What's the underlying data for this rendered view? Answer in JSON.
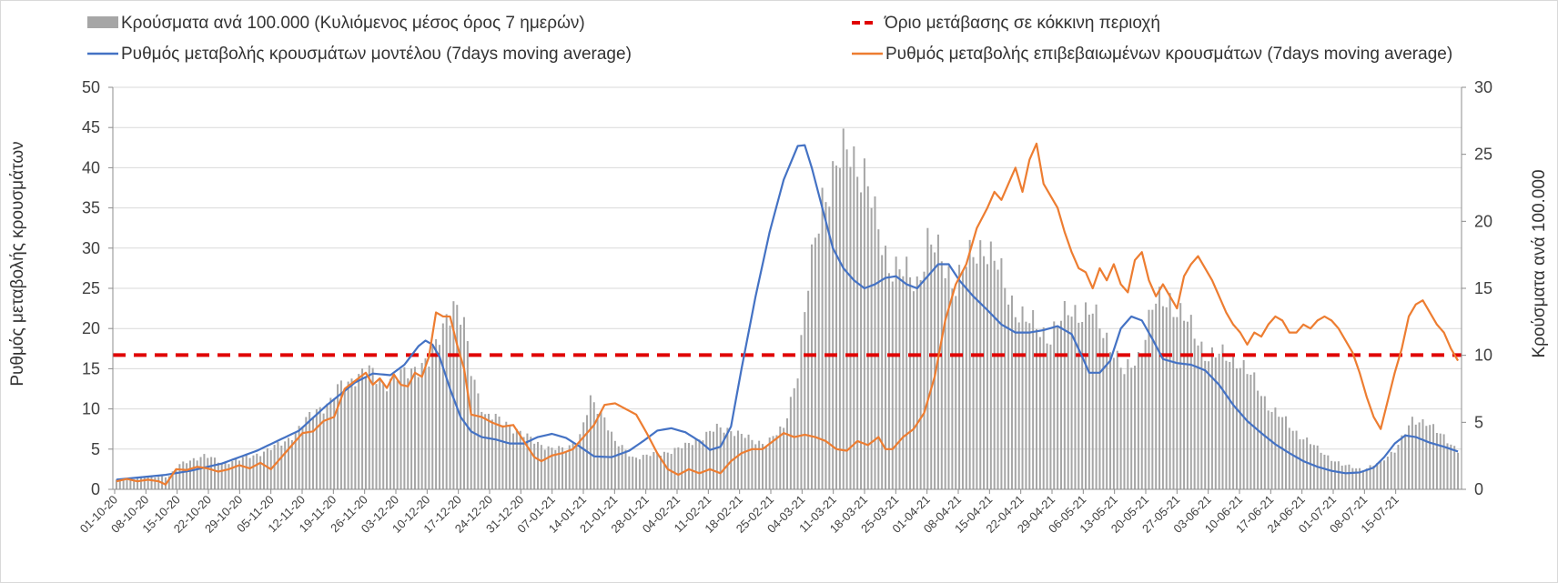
{
  "chart_data": {
    "type": "combo-bar-line",
    "legend": {
      "bars": "Κρούσματα ανά 100.000 (Κυλιόμενος μέσος όρος 7 ημερών)",
      "threshold": "Όριο μετάβασης σε κόκκινη περιοχή",
      "model": "Ρυθμός μεταβολής κρουσμάτων μοντέλου (7days moving average)",
      "confirmed": "Ρυθμός μεταβολής επιβεβαιωμένων κρουσμάτων (7days moving average)"
    },
    "y_left": {
      "label": "Ρυθμός μεταβολής κρουσμάτων",
      "min": 0,
      "max": 50,
      "ticks": [
        0,
        5,
        10,
        15,
        20,
        25,
        30,
        35,
        40,
        45,
        50
      ]
    },
    "y_right": {
      "label": "Κρούσματα ανά 100.000",
      "min": 0,
      "max": 30,
      "ticks": [
        0,
        5,
        10,
        15,
        20,
        25,
        30
      ]
    },
    "grid": true,
    "x_start": "2020-10-01",
    "x_days": 294,
    "x_tick_labels": [
      "01-10-20",
      "08-10-20",
      "15-10-20",
      "22-10-20",
      "29-10-20",
      "05-11-20",
      "12-11-20",
      "19-11-20",
      "26-11-20",
      "03-12-20",
      "10-12-20",
      "17-12-20",
      "24-12-20",
      "31-12-20",
      "07-01-21",
      "14-01-21",
      "21-01-21",
      "28-01-21",
      "04-02-21",
      "11-02-21",
      "18-02-21",
      "25-02-21",
      "04-03-21",
      "11-03-21",
      "18-03-21",
      "25-03-21",
      "01-04-21",
      "08-04-21",
      "15-04-21",
      "22-04-21",
      "29-04-21",
      "06-05-21",
      "13-05-21",
      "20-05-21",
      "27-05-21",
      "03-06-21",
      "10-06-21",
      "17-06-21",
      "24-06-21",
      "01-07-21",
      "08-07-21",
      "15-07-21"
    ],
    "threshold_left_value": 16.7,
    "bars_per_100k_keypoints": [
      [
        0,
        0.7
      ],
      [
        7,
        0.9
      ],
      [
        12,
        1.0
      ],
      [
        14,
        1.8
      ],
      [
        17,
        2.3
      ],
      [
        20,
        2.5
      ],
      [
        24,
        2.0
      ],
      [
        28,
        2.2
      ],
      [
        35,
        3.0
      ],
      [
        38,
        3.6
      ],
      [
        41,
        4.5
      ],
      [
        45,
        6.0
      ],
      [
        48,
        6.5
      ],
      [
        50,
        7.4
      ],
      [
        54,
        8.5
      ],
      [
        57,
        8.7
      ],
      [
        60,
        8.0
      ],
      [
        64,
        8.4
      ],
      [
        67,
        9.2
      ],
      [
        70,
        9.4
      ],
      [
        72,
        10.6
      ],
      [
        74,
        13.2
      ],
      [
        76,
        13.8
      ],
      [
        78,
        12.0
      ],
      [
        80,
        9.0
      ],
      [
        83,
        5.5
      ],
      [
        88,
        5.0
      ],
      [
        92,
        4.0
      ],
      [
        98,
        3.0
      ],
      [
        101,
        3.0
      ],
      [
        104,
        4.0
      ],
      [
        107,
        6.5
      ],
      [
        110,
        5.5
      ],
      [
        112,
        3.5
      ],
      [
        116,
        2.4
      ],
      [
        122,
        2.6
      ],
      [
        128,
        3.2
      ],
      [
        132,
        4.0
      ],
      [
        135,
        4.5
      ],
      [
        138,
        4.5
      ],
      [
        143,
        3.6
      ],
      [
        146,
        3.5
      ],
      [
        150,
        4.5
      ],
      [
        153,
        9.0
      ],
      [
        156,
        15.0
      ],
      [
        159,
        22.0
      ],
      [
        162,
        23.8
      ],
      [
        165,
        25.5
      ],
      [
        168,
        23.5
      ],
      [
        171,
        20.0
      ],
      [
        174,
        17.0
      ],
      [
        177,
        16.0
      ],
      [
        180,
        15.5
      ],
      [
        183,
        18.5
      ],
      [
        186,
        17.0
      ],
      [
        189,
        15.5
      ],
      [
        192,
        17.0
      ],
      [
        195,
        18.5
      ],
      [
        198,
        17.0
      ],
      [
        201,
        14.5
      ],
      [
        205,
        12.5
      ],
      [
        210,
        11.5
      ],
      [
        215,
        13.5
      ],
      [
        220,
        13.0
      ],
      [
        224,
        11.0
      ],
      [
        227,
        8.5
      ],
      [
        230,
        10.0
      ],
      [
        233,
        13.5
      ],
      [
        237,
        14.3
      ],
      [
        241,
        12.3
      ],
      [
        246,
        10.0
      ],
      [
        252,
        9.8
      ],
      [
        256,
        8.0
      ],
      [
        260,
        6.0
      ],
      [
        265,
        4.5
      ],
      [
        270,
        3.0
      ],
      [
        276,
        1.8
      ],
      [
        281,
        1.5
      ],
      [
        285,
        2.0
      ],
      [
        288,
        3.0
      ],
      [
        292,
        5.0
      ],
      [
        295,
        5.2
      ],
      [
        298,
        4.0
      ],
      [
        302,
        3.0
      ]
    ],
    "model_keypoints": [
      [
        0,
        1.2
      ],
      [
        14,
        1.8
      ],
      [
        21,
        2.3
      ],
      [
        30,
        3.2
      ],
      [
        40,
        4.8
      ],
      [
        52,
        7.3
      ],
      [
        60,
        10.5
      ],
      [
        68,
        13.3
      ],
      [
        73,
        14.4
      ],
      [
        78,
        14.2
      ],
      [
        82,
        15.5
      ],
      [
        86,
        17.8
      ],
      [
        88,
        18.5
      ],
      [
        90,
        18.0
      ],
      [
        92,
        16.5
      ],
      [
        95,
        12.5
      ],
      [
        98,
        9.0
      ],
      [
        101,
        7.2
      ],
      [
        104,
        6.5
      ],
      [
        108,
        6.2
      ],
      [
        112,
        5.7
      ],
      [
        116,
        5.7
      ],
      [
        120,
        6.5
      ],
      [
        124,
        6.9
      ],
      [
        128,
        6.4
      ],
      [
        132,
        5.3
      ],
      [
        136,
        4.1
      ],
      [
        141,
        4.0
      ],
      [
        146,
        4.8
      ],
      [
        150,
        6.0
      ],
      [
        154,
        7.3
      ],
      [
        158,
        7.6
      ],
      [
        162,
        7.1
      ],
      [
        166,
        6.0
      ],
      [
        169,
        4.9
      ],
      [
        172,
        5.3
      ],
      [
        175,
        7.8
      ],
      [
        178,
        15.0
      ],
      [
        182,
        24.0
      ],
      [
        186,
        32.0
      ],
      [
        190,
        38.5
      ],
      [
        194,
        42.7
      ],
      [
        196,
        42.8
      ],
      [
        198,
        40.0
      ],
      [
        201,
        35.0
      ],
      [
        204,
        30.0
      ],
      [
        207,
        27.5
      ],
      [
        210,
        26.0
      ],
      [
        213,
        25.0
      ],
      [
        216,
        25.5
      ],
      [
        219,
        26.3
      ],
      [
        222,
        26.5
      ],
      [
        225,
        25.5
      ],
      [
        228,
        25.0
      ],
      [
        231,
        26.5
      ],
      [
        234,
        28.0
      ],
      [
        237,
        28.0
      ],
      [
        240,
        26.0
      ],
      [
        244,
        24.0
      ],
      [
        248,
        22.3
      ],
      [
        252,
        20.5
      ],
      [
        256,
        19.5
      ],
      [
        260,
        19.5
      ],
      [
        264,
        19.8
      ],
      [
        268,
        20.3
      ],
      [
        272,
        19.3
      ],
      [
        275,
        16.5
      ],
      [
        277,
        14.5
      ],
      [
        280,
        14.5
      ],
      [
        283,
        16.0
      ],
      [
        286,
        20.0
      ],
      [
        289,
        21.5
      ],
      [
        292,
        21.0
      ],
      [
        295,
        18.7
      ],
      [
        298,
        16.2
      ],
      [
        302,
        15.7
      ],
      [
        306,
        15.5
      ],
      [
        310,
        14.8
      ],
      [
        314,
        13.0
      ],
      [
        318,
        10.5
      ],
      [
        322,
        8.5
      ],
      [
        326,
        7.0
      ],
      [
        330,
        5.6
      ],
      [
        334,
        4.5
      ],
      [
        338,
        3.5
      ],
      [
        342,
        2.8
      ],
      [
        346,
        2.3
      ],
      [
        350,
        2.0
      ],
      [
        354,
        2.1
      ],
      [
        358,
        2.7
      ],
      [
        361,
        4.0
      ],
      [
        364,
        5.7
      ],
      [
        367,
        6.7
      ],
      [
        370,
        6.5
      ],
      [
        374,
        5.8
      ],
      [
        378,
        5.3
      ],
      [
        382,
        4.7
      ]
    ],
    "confirmed_keypoints": [
      [
        0,
        1.0
      ],
      [
        3,
        1.3
      ],
      [
        6,
        1.0
      ],
      [
        9,
        1.2
      ],
      [
        12,
        1.0
      ],
      [
        14,
        0.6
      ],
      [
        17,
        2.5
      ],
      [
        20,
        2.4
      ],
      [
        23,
        2.8
      ],
      [
        26,
        2.6
      ],
      [
        29,
        2.2
      ],
      [
        32,
        2.5
      ],
      [
        35,
        3.0
      ],
      [
        38,
        2.6
      ],
      [
        41,
        3.3
      ],
      [
        44,
        2.5
      ],
      [
        47,
        4.0
      ],
      [
        50,
        5.5
      ],
      [
        53,
        7.0
      ],
      [
        56,
        7.2
      ],
      [
        59,
        8.5
      ],
      [
        62,
        9.0
      ],
      [
        65,
        12.5
      ],
      [
        68,
        13.5
      ],
      [
        71,
        14.5
      ],
      [
        73,
        13.0
      ],
      [
        75,
        13.8
      ],
      [
        77,
        12.6
      ],
      [
        79,
        14.3
      ],
      [
        81,
        13.0
      ],
      [
        83,
        12.8
      ],
      [
        85,
        14.5
      ],
      [
        87,
        14.0
      ],
      [
        89,
        16.5
      ],
      [
        91,
        22.0
      ],
      [
        93,
        21.5
      ],
      [
        95,
        21.5
      ],
      [
        97,
        18.0
      ],
      [
        99,
        15.0
      ],
      [
        101,
        9.3
      ],
      [
        104,
        9.0
      ],
      [
        107,
        8.3
      ],
      [
        110,
        7.8
      ],
      [
        113,
        8.0
      ],
      [
        116,
        6.0
      ],
      [
        119,
        4.0
      ],
      [
        121,
        3.5
      ],
      [
        124,
        4.2
      ],
      [
        127,
        4.5
      ],
      [
        130,
        5.0
      ],
      [
        133,
        6.5
      ],
      [
        136,
        8.0
      ],
      [
        139,
        10.5
      ],
      [
        142,
        10.7
      ],
      [
        145,
        10.0
      ],
      [
        148,
        9.3
      ],
      [
        151,
        7.0
      ],
      [
        154,
        4.5
      ],
      [
        157,
        2.5
      ],
      [
        160,
        1.8
      ],
      [
        163,
        2.5
      ],
      [
        166,
        2.0
      ],
      [
        169,
        2.5
      ],
      [
        172,
        2.0
      ],
      [
        175,
        3.5
      ],
      [
        178,
        4.5
      ],
      [
        181,
        5.0
      ],
      [
        184,
        5.0
      ],
      [
        187,
        6.0
      ],
      [
        190,
        7.0
      ],
      [
        193,
        6.5
      ],
      [
        196,
        6.8
      ],
      [
        199,
        6.5
      ],
      [
        202,
        6.0
      ],
      [
        205,
        5.0
      ],
      [
        208,
        4.8
      ],
      [
        211,
        6.0
      ],
      [
        214,
        5.5
      ],
      [
        217,
        6.5
      ],
      [
        219,
        5.0
      ],
      [
        221,
        5.0
      ],
      [
        224,
        6.5
      ],
      [
        227,
        7.5
      ],
      [
        230,
        9.5
      ],
      [
        233,
        14.0
      ],
      [
        236,
        21.0
      ],
      [
        239,
        25.5
      ],
      [
        242,
        28.0
      ],
      [
        245,
        32.5
      ],
      [
        248,
        35.0
      ],
      [
        250,
        37.0
      ],
      [
        252,
        36.0
      ],
      [
        254,
        38.0
      ],
      [
        256,
        40.0
      ],
      [
        258,
        37.0
      ],
      [
        260,
        41.0
      ],
      [
        262,
        43.0
      ],
      [
        264,
        38.0
      ],
      [
        266,
        36.5
      ],
      [
        268,
        35.0
      ],
      [
        270,
        32.0
      ],
      [
        272,
        29.5
      ],
      [
        274,
        27.5
      ],
      [
        276,
        27.0
      ],
      [
        278,
        25.0
      ],
      [
        280,
        27.5
      ],
      [
        282,
        26.0
      ],
      [
        284,
        28.0
      ],
      [
        286,
        25.5
      ],
      [
        288,
        24.5
      ],
      [
        290,
        28.5
      ],
      [
        292,
        29.5
      ],
      [
        294,
        26.0
      ],
      [
        296,
        24.0
      ],
      [
        298,
        25.5
      ],
      [
        300,
        24.0
      ],
      [
        302,
        22.5
      ],
      [
        304,
        26.5
      ],
      [
        306,
        28.0
      ],
      [
        308,
        29.0
      ],
      [
        310,
        27.5
      ],
      [
        312,
        26.0
      ],
      [
        314,
        24.0
      ],
      [
        316,
        22.0
      ],
      [
        318,
        20.5
      ],
      [
        320,
        19.5
      ],
      [
        322,
        18.0
      ],
      [
        324,
        19.5
      ],
      [
        326,
        19.0
      ],
      [
        328,
        20.5
      ],
      [
        330,
        21.5
      ],
      [
        332,
        21.0
      ],
      [
        334,
        19.5
      ],
      [
        336,
        19.5
      ],
      [
        338,
        20.5
      ],
      [
        340,
        20.0
      ],
      [
        342,
        21.0
      ],
      [
        344,
        21.5
      ],
      [
        346,
        21.0
      ],
      [
        348,
        20.0
      ],
      [
        350,
        18.5
      ],
      [
        352,
        17.0
      ],
      [
        354,
        14.5
      ],
      [
        356,
        11.5
      ],
      [
        358,
        9.0
      ],
      [
        360,
        7.5
      ],
      [
        362,
        11.0
      ],
      [
        364,
        14.5
      ],
      [
        366,
        17.5
      ],
      [
        368,
        21.5
      ],
      [
        370,
        23.0
      ],
      [
        372,
        23.5
      ],
      [
        374,
        22.0
      ],
      [
        376,
        20.5
      ],
      [
        378,
        19.5
      ],
      [
        380,
        17.5
      ],
      [
        382,
        16.0
      ]
    ]
  }
}
